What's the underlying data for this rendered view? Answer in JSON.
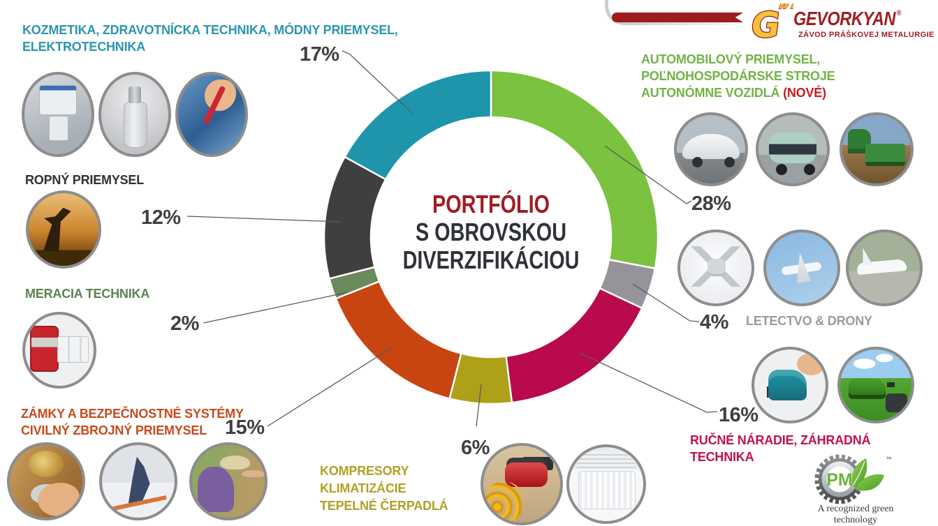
{
  "brand": {
    "name": "GEVORKYAN",
    "reg": "®",
    "tagline": "ZÁVOD PRÁŠKOVEJ METALURGIE",
    "gmark_letter": "G",
    "gmark_quotes": "””",
    "color": "#A01D22"
  },
  "center": {
    "line1": "PORTFÓLIO",
    "line2": "S OBROVSKOU",
    "line3": "DIVERZIFIKÁCIOU",
    "line1_color": "#A01D22",
    "text_color": "#2F323A"
  },
  "chart_data": {
    "type": "pie",
    "subtype": "donut",
    "title": "PORTFÓLIO S OBROVSKOU DIVERZIFIKÁCIOU",
    "start_angle_deg_from_top_clockwise": 0,
    "donut_hole_ratio": 0.72,
    "legend_position": "around",
    "series": [
      {
        "name": "AUTOMOBILOVÝ PRIEMYSEL, POĽNOHOSPODÁRSKE STROJE, AUTONÓMNE VOZIDLÁ (NOVÉ)",
        "value": 28,
        "color": "#7AC23F"
      },
      {
        "name": "LETECTVO & DRONY",
        "value": 4,
        "color": "#96939B"
      },
      {
        "name": "RUČNÉ NÁRADIE, ZÁHRADNÁ TECHNIKA",
        "value": 16,
        "color": "#B80A4D"
      },
      {
        "name": "KOMPRESORY, KLIMATIZÁCIE, TEPELNÉ ČERPADLÁ",
        "value": 6,
        "color": "#AEA019"
      },
      {
        "name": "ZÁMKY A BEZPEČNOSTNÉ SYSTÉMY, CIVILNÝ ZBROJNÝ PRIEMYSEL",
        "value": 15,
        "color": "#C84511"
      },
      {
        "name": "MERACIA TECHNIKA",
        "value": 2,
        "color": "#6B8A5D"
      },
      {
        "name": "ROPNÝ PRIEMYSEL",
        "value": 12,
        "color": "#403F40"
      },
      {
        "name": "KOZMETIKA, ZDRAVOTNÍCKA TECHNIKA, MÓDNY PRIEMYSEL, ELEKTROTECHNIKA",
        "value": 17,
        "color": "#1E95AB"
      }
    ]
  },
  "callouts": {
    "cosmetics": {
      "pct": "17%",
      "line1": "KOZMETIKA, ZDRAVOTNÍCKA TECHNIKA, MÓDNY PRIEMYSEL,",
      "line2": "ELEKTROTECHNIKA",
      "color": "#2B96AE"
    },
    "automotive": {
      "pct": "28%",
      "line1": "AUTOMOBILOVÝ PRIEMYSEL,",
      "line2": "POĽNOHOSPODÁRSKE STROJE",
      "line3": "AUTONÓMNE VOZIDLÁ",
      "new_badge": "(NOVÉ)",
      "color": "#71B345"
    },
    "oil": {
      "pct": "12%",
      "line1": "ROPNÝ PRIEMYSEL",
      "color": "#303030"
    },
    "measuring": {
      "pct": "2%",
      "line1": "MERACIA TECHNIKA",
      "color": "#5E8052"
    },
    "locks": {
      "pct": "15%",
      "line1": "ZÁMKY A BEZPEČNOSTNÉ SYSTÉMY",
      "line2": "CIVILNÝ ZBROJNÝ PRIEMYSEL",
      "color": "#C64B1B"
    },
    "compressors": {
      "pct": "6%",
      "line1": "KOMPRESORY",
      "line2": "KLIMATIZÁCIE",
      "line3": "TEPELNÉ ČERPADLÁ",
      "color": "#B1A023"
    },
    "tools": {
      "pct": "16%",
      "line1": "RUČNÉ NÁRADIE, ZÁHRADNÁ",
      "line2": "TECHNIKA",
      "color": "#C11052"
    },
    "aviation": {
      "pct": "4%",
      "line1": "LETECTVO & DRONY",
      "color": "#9B9AA0"
    }
  },
  "photos": {
    "cosmetics": [
      "medical-device",
      "perfume-bottle",
      "electronics-wiring"
    ],
    "oil": [
      "oil-pumpjack"
    ],
    "measuring": [
      "multimeter-breakers"
    ],
    "locks": [
      "key-in-lock",
      "biathlon-shooter",
      "pistol-shooting"
    ],
    "compressors": [
      "air-compressor",
      "air-conditioner"
    ],
    "automotive": [
      "suv-car",
      "autonomous-shuttle",
      "tractor-seeder"
    ],
    "aviation": [
      "drone",
      "airliner",
      "small-plane"
    ],
    "tools": [
      "jigsaw-tool",
      "lawnmower"
    ]
  },
  "pm_logo": {
    "initials": "PM",
    "tm": "™",
    "caption_line1": "A recognized green",
    "caption_line2": "technology"
  }
}
